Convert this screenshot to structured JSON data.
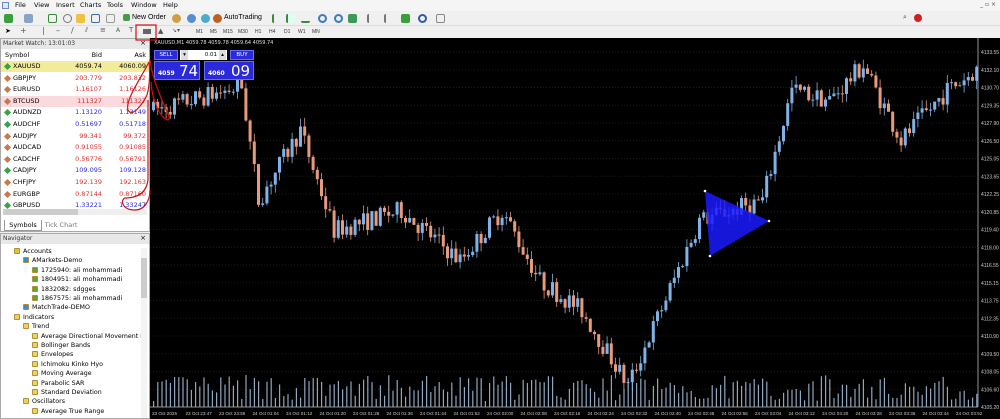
{
  "menu": [
    "File",
    "View",
    "Insert",
    "Charts",
    "Tools",
    "Window",
    "Help"
  ],
  "toolbar": {
    "new_order": "New Order",
    "autotrading": "AutoTrading",
    "timeframes": [
      "M1",
      "M5",
      "M15",
      "M30",
      "H1",
      "H4",
      "D1",
      "W1",
      "MN"
    ]
  },
  "market_watch": {
    "title": "Market Watch: 13:01:03",
    "columns": [
      "Symbol",
      "Bid",
      "Ask"
    ],
    "rows": [
      {
        "symbol": "XAUUSD",
        "bid": "4059.74",
        "ask": "4060.09",
        "dir": "up"
      },
      {
        "symbol": "GBPJPY",
        "bid": "203.779",
        "ask": "203.832",
        "dir": "down"
      },
      {
        "symbol": "EURUSD",
        "bid": "1.16107",
        "ask": "1.16126",
        "dir": "down"
      },
      {
        "symbol": "BTCUSD",
        "bid": "111327",
        "ask": "111327",
        "dir": "down"
      },
      {
        "symbol": "AUDNZD",
        "bid": "1.13120",
        "ask": "1.13149",
        "dir": "up"
      },
      {
        "symbol": "AUDCHF",
        "bid": "0.51697",
        "ask": "0.51718",
        "dir": "up"
      },
      {
        "symbol": "AUDJPY",
        "bid": "99.341",
        "ask": "99.372",
        "dir": "down"
      },
      {
        "symbol": "AUDCAD",
        "bid": "0.91055",
        "ask": "0.91085",
        "dir": "down"
      },
      {
        "symbol": "CADCHF",
        "bid": "0.56776",
        "ask": "0.56791",
        "dir": "down"
      },
      {
        "symbol": "CADJPY",
        "bid": "109.095",
        "ask": "109.128",
        "dir": "up"
      },
      {
        "symbol": "CHFJPY",
        "bid": "192.139",
        "ask": "192.163",
        "dir": "down"
      },
      {
        "symbol": "EURGBP",
        "bid": "0.87144",
        "ask": "0.87160",
        "dir": "down"
      },
      {
        "symbol": "GBPUSD",
        "bid": "1.33221",
        "ask": "1.33247",
        "dir": "up"
      }
    ],
    "tabs": [
      "Symbols",
      "Tick Chart"
    ]
  },
  "navigator": {
    "title": "Navigator",
    "items": [
      {
        "label": "Accounts",
        "level": 1,
        "icon": "folder"
      },
      {
        "label": "AMarkets-Demo",
        "level": 2,
        "icon": "server"
      },
      {
        "label": "1725940: ali mohammadi",
        "level": 3,
        "icon": "user"
      },
      {
        "label": "1804951: ali mohammadi",
        "level": 3,
        "icon": "user"
      },
      {
        "label": "1832082: sdgges",
        "level": 3,
        "icon": "user"
      },
      {
        "label": "1867575: ali mohammadi",
        "level": 3,
        "icon": "user"
      },
      {
        "label": "MatchTrade-DEMO",
        "level": 2,
        "icon": "server"
      },
      {
        "label": "Indicators",
        "level": 1,
        "icon": "indicator"
      },
      {
        "label": "Trend",
        "level": 2,
        "icon": "indicator"
      },
      {
        "label": "Average Directional Movement I",
        "level": 3,
        "icon": "indicator"
      },
      {
        "label": "Bollinger Bands",
        "level": 3,
        "icon": "indicator"
      },
      {
        "label": "Envelopes",
        "level": 3,
        "icon": "indicator"
      },
      {
        "label": "Ichimoku Kinko Hyo",
        "level": 3,
        "icon": "indicator"
      },
      {
        "label": "Moving Average",
        "level": 3,
        "icon": "indicator"
      },
      {
        "label": "Parabolic SAR",
        "level": 3,
        "icon": "indicator"
      },
      {
        "label": "Standard Deviation",
        "level": 3,
        "icon": "indicator"
      },
      {
        "label": "Oscillators",
        "level": 2,
        "icon": "indicator"
      },
      {
        "label": "Average True Range",
        "level": 3,
        "icon": "indicator"
      }
    ]
  },
  "chart": {
    "header": "XAUUSD,M1  4059.78 4059.78 4059.64 4059.74",
    "one_click": {
      "sell": "SELL",
      "buy": "BUY",
      "lot": "0.01",
      "sell_big": "4059",
      "sell_small": "74",
      "buy_big": "4060",
      "buy_small": "09"
    },
    "price_labels": [
      "4133.55",
      "4132.10",
      "4130.70",
      "4129.35",
      "4127.90",
      "4126.50",
      "4125.05",
      "4123.65",
      "4122.25",
      "4120.85",
      "4119.40",
      "4118.00",
      "4116.55",
      "4115.15",
      "4113.75",
      "4112.35",
      "4110.90",
      "4109.50",
      "4108.05",
      "4106.60",
      "4105.20"
    ],
    "time_labels": [
      "23 Oct 2025",
      "23 Oct 23:47",
      "23 Oct 23:55",
      "24 Oct 01:04",
      "24 Oct 01:12",
      "24 Oct 01:20",
      "24 Oct 01:28",
      "24 Oct 01:36",
      "24 Oct 01:44",
      "24 Oct 01:52",
      "24 Oct 02:00",
      "24 Oct 02:08",
      "24 Oct 02:16",
      "24 Oct 02:24",
      "24 Oct 02:32",
      "24 Oct 02:40",
      "24 Oct 02:48",
      "24 Oct 02:56",
      "24 Oct 03:04",
      "24 Oct 03:12",
      "24 Oct 03:20",
      "24 Oct 03:28",
      "24 Oct 03:36",
      "24 Oct 03:44",
      "24 Oct 03:52"
    ],
    "price_range": [
      4105.2,
      4133.55
    ],
    "price_path": [
      [
        0,
        4128.9
      ],
      [
        21,
        4130.8
      ],
      [
        25,
        4121.7
      ],
      [
        35,
        4127.3
      ],
      [
        43,
        4119.3
      ],
      [
        59,
        4120.9
      ],
      [
        73,
        4116.9
      ],
      [
        83,
        4120.9
      ],
      [
        92,
        4115.3
      ],
      [
        102,
        4112.9
      ],
      [
        113,
        4106.9
      ],
      [
        130,
        4120.1
      ],
      [
        145,
        4121.7
      ],
      [
        152,
        4130.5
      ],
      [
        161,
        4129.7
      ],
      [
        169,
        4132.5
      ],
      [
        178,
        4126.5
      ],
      [
        189,
        4130.5
      ],
      [
        196,
        4132.1
      ]
    ],
    "colors": {
      "bull": "#7fb2e6",
      "bear": "#e89a7c",
      "triangle": "#1a1aff",
      "background": "#000000",
      "annotation": "#d01010"
    }
  }
}
